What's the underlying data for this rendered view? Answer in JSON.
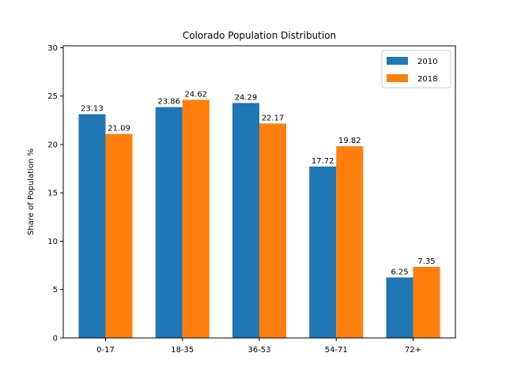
{
  "chart_data": {
    "type": "bar",
    "title": "Colorado Population Distribution",
    "xlabel": "",
    "ylabel": "Share of Population %",
    "categories": [
      "0-17",
      "18-35",
      "36-53",
      "54-71",
      "72+"
    ],
    "series": [
      {
        "name": "2010",
        "color": "#1f77b4",
        "values": [
          23.13,
          23.86,
          24.29,
          17.72,
          6.25
        ]
      },
      {
        "name": "2018",
        "color": "#ff7f0e",
        "values": [
          21.09,
          24.62,
          22.17,
          19.82,
          7.35
        ]
      }
    ],
    "ylim": [
      0,
      30.2
    ],
    "yticks": [
      0,
      5,
      10,
      15,
      20,
      25,
      30
    ],
    "grid": false,
    "legend": "top-right",
    "data_labels": true
  }
}
